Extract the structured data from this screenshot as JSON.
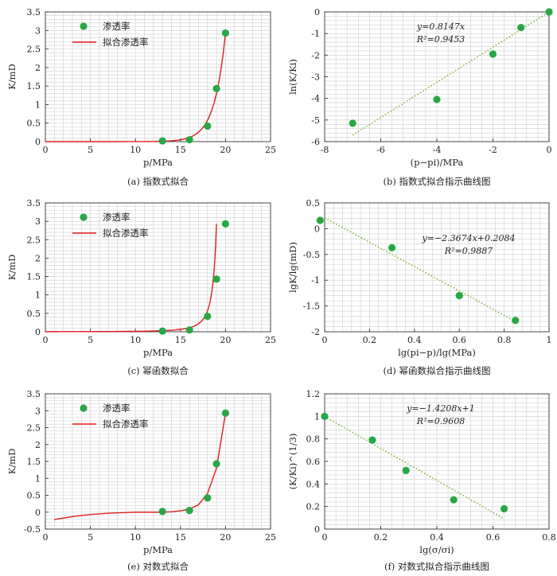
{
  "chart_data": [
    {
      "id": "a",
      "type": "scatter",
      "caption": "(a)  指数式拟合",
      "xlabel": "p/MPa",
      "ylabel": "K/mD",
      "xlim": [
        0,
        25
      ],
      "ylim": [
        0,
        3.5
      ],
      "xticks": [
        0,
        5,
        10,
        15,
        20,
        25
      ],
      "yticks": [
        0,
        0.5,
        1,
        1.5,
        2,
        2.5,
        3,
        3.5
      ],
      "grid": true,
      "legend_position": "top-left",
      "series": [
        {
          "name": "渗透率",
          "kind": "points",
          "x": [
            13,
            16,
            18,
            19,
            20
          ],
          "y": [
            0.02,
            0.05,
            0.42,
            1.43,
            2.93
          ]
        },
        {
          "name": "拟合渗透率",
          "kind": "line",
          "fit": "exp",
          "params": {
            "a": 2.93,
            "b": 0.8147,
            "x0": 20
          },
          "x": [
            0,
            20
          ]
        }
      ]
    },
    {
      "id": "b",
      "type": "scatter",
      "caption": "(b)  指数式拟合指示曲线图",
      "xlabel": "(p−pi)/MPa",
      "ylabel": "ln(K/Ki)",
      "xlim": [
        -8,
        0
      ],
      "ylim": [
        -6,
        0
      ],
      "xticks": [
        -8,
        -6,
        -4,
        -2,
        0
      ],
      "yticks": [
        -6,
        -5,
        -4,
        -3,
        -2,
        -1,
        0
      ],
      "grid": true,
      "equation": "y=0.8147x",
      "r2": "R²=0.9453",
      "series": [
        {
          "name": "",
          "kind": "points",
          "x": [
            -7,
            -4,
            -2,
            -1,
            0
          ],
          "y": [
            -5.15,
            -4.05,
            -1.95,
            -0.72,
            0
          ]
        },
        {
          "name": "",
          "kind": "trend",
          "x": [
            -7,
            0
          ],
          "y": [
            -5.7,
            0
          ]
        }
      ]
    },
    {
      "id": "c",
      "type": "scatter",
      "caption": "(c)  幂函数拟合",
      "xlabel": "p/MPa",
      "ylabel": "K/mD",
      "xlim": [
        0,
        25
      ],
      "ylim": [
        0,
        3.5
      ],
      "xticks": [
        0,
        5,
        10,
        15,
        20,
        25
      ],
      "yticks": [
        0,
        0.5,
        1,
        1.5,
        2,
        2.5,
        3,
        3.5
      ],
      "grid": true,
      "legend_position": "top-left",
      "series": [
        {
          "name": "渗透率",
          "kind": "points",
          "x": [
            13,
            16,
            18,
            19,
            20
          ],
          "y": [
            0.02,
            0.05,
            0.42,
            1.43,
            2.93
          ]
        },
        {
          "name": "拟合渗透率",
          "kind": "line",
          "fit": "power",
          "params": {
            "a": 2.93,
            "b": -2.3674,
            "pi": 20
          },
          "x": [
            0,
            19
          ]
        }
      ]
    },
    {
      "id": "d",
      "type": "scatter",
      "caption": "(d)  幂函数拟合指示曲线图",
      "xlabel": "lg(pi−p)/lg(MPa)",
      "ylabel": "lgK/lg(mD)",
      "xlim": [
        0,
        1
      ],
      "ylim": [
        -2,
        0.5
      ],
      "xticks": [
        0,
        0.2,
        0.4,
        0.6,
        0.8,
        1
      ],
      "yticks": [
        -2,
        -1.5,
        -1,
        -0.5,
        0,
        0.5
      ],
      "grid": true,
      "equation": "y=−2.3674x+0.2084",
      "r2": "R²=0.9887",
      "series": [
        {
          "name": "",
          "kind": "points",
          "x": [
            -0.02,
            0.3,
            0.6,
            0.85
          ],
          "y": [
            0.16,
            -0.37,
            -1.3,
            -1.78
          ]
        },
        {
          "name": "",
          "kind": "trend",
          "x": [
            0,
            0.85
          ],
          "y": [
            0.21,
            -1.8
          ]
        }
      ]
    },
    {
      "id": "e",
      "type": "scatter",
      "caption": "(e)  对数式拟合",
      "xlabel": "p/MPa",
      "ylabel": "K/mD",
      "xlim": [
        0,
        25
      ],
      "ylim": [
        -0.5,
        3.5
      ],
      "xticks": [
        0,
        5,
        10,
        15,
        20,
        25
      ],
      "yticks": [
        -0.5,
        0,
        0.5,
        1,
        1.5,
        2,
        2.5,
        3,
        3.5
      ],
      "grid": true,
      "legend_position": "top-left",
      "series": [
        {
          "name": "渗透率",
          "kind": "points",
          "x": [
            13,
            16,
            18,
            19,
            20
          ],
          "y": [
            0.02,
            0.05,
            0.42,
            1.43,
            2.93
          ]
        },
        {
          "name": "拟合渗透率",
          "kind": "line",
          "x": [
            1,
            3,
            5,
            7,
            9,
            10,
            11,
            12,
            13,
            14,
            15,
            16,
            17,
            18,
            19,
            20
          ],
          "y": [
            -0.22,
            -0.13,
            -0.07,
            -0.03,
            -0.01,
            0.0,
            0.0,
            0.0,
            0.0,
            0.01,
            0.04,
            0.09,
            0.22,
            0.55,
            1.3,
            2.93
          ]
        }
      ]
    },
    {
      "id": "f",
      "type": "scatter",
      "caption": "(f)  对数式拟合指示曲线图",
      "xlabel": "lg(σ/σi)",
      "ylabel": "(K/Ki)^(1/3)",
      "xlim": [
        0,
        0.8
      ],
      "ylim": [
        0,
        1.2
      ],
      "xticks": [
        0,
        0.2,
        0.4,
        0.6,
        0.8
      ],
      "yticks": [
        0,
        0.2,
        0.4,
        0.6,
        0.8,
        1,
        1.2
      ],
      "grid": true,
      "equation": "y=−1.4208x+1",
      "r2": "R²=0.9608",
      "series": [
        {
          "name": "",
          "kind": "points",
          "x": [
            0,
            0.17,
            0.29,
            0.46,
            0.64
          ],
          "y": [
            1.0,
            0.79,
            0.52,
            0.26,
            0.18
          ]
        },
        {
          "name": "",
          "kind": "trend",
          "x": [
            0,
            0.64
          ],
          "y": [
            1.0,
            0.09
          ]
        }
      ]
    }
  ],
  "colors": {
    "point": "#27a844",
    "fit_line": "#e01b1b",
    "trend": "#7fb33c",
    "grid": "#cfcfcf"
  }
}
